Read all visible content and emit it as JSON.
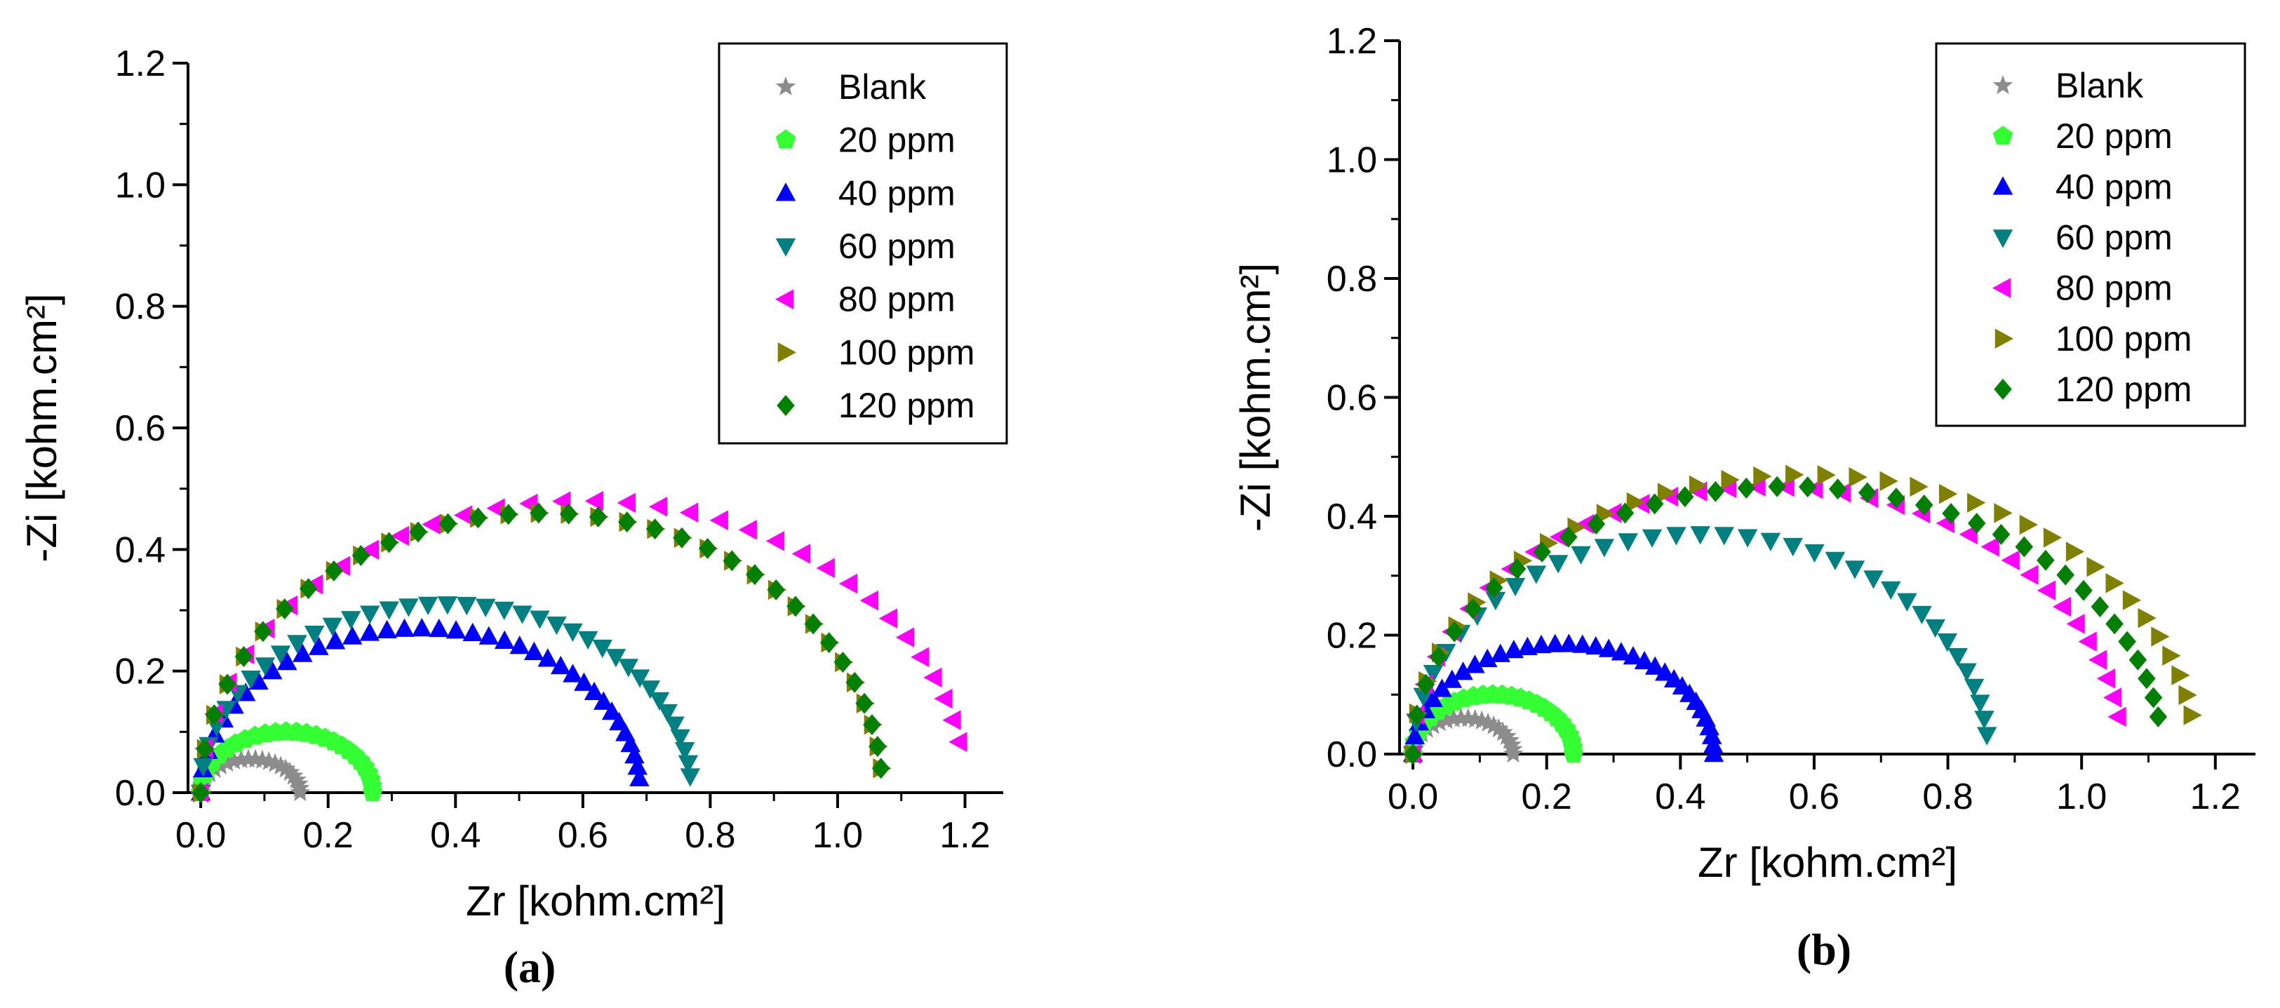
{
  "chart_data": [
    {
      "type": "scatter",
      "caption": "(a)",
      "xlabel": "Zr [kohm.cm²]",
      "ylabel": "-Zi [kohm.cm²]",
      "xlim": [
        -0.02,
        1.26
      ],
      "ylim": [
        0,
        1.2
      ],
      "xticks": [
        "0.0",
        "0.2",
        "0.4",
        "0.6",
        "0.8",
        "1.0",
        "1.2"
      ],
      "yticks": [
        "0.0",
        "0.2",
        "0.4",
        "0.6",
        "0.8",
        "1.0",
        "1.2"
      ],
      "grid": false,
      "legend": "top-right",
      "series": [
        {
          "name": "Blank",
          "marker": "star",
          "color": "#8c8c8c",
          "center": 0.078,
          "radius": 0.078,
          "height": 0.055,
          "points": 22,
          "maxAngle": 180
        },
        {
          "name": "20 ppm",
          "marker": "pentagon",
          "color": "#33ff33",
          "center": 0.135,
          "radius": 0.135,
          "height": 0.1,
          "points": 26,
          "maxAngle": 180
        },
        {
          "name": "40 ppm",
          "marker": "triangle-up",
          "color": "#0000ff",
          "center": 0.345,
          "radius": 0.345,
          "height": 0.27,
          "points": 38,
          "maxAngle": 175
        },
        {
          "name": "60 ppm",
          "marker": "triangle-down",
          "color": "#008080",
          "center": 0.385,
          "radius": 0.385,
          "height": 0.31,
          "points": 38,
          "maxAngle": 175
        },
        {
          "name": "80 ppm",
          "marker": "triangle-left",
          "color": "#ff00ff",
          "center": 0.6,
          "radius": 0.6,
          "height": 0.48,
          "points": 34,
          "maxAngle": 170
        },
        {
          "name": "100 ppm",
          "marker": "triangle-right",
          "color": "#808000",
          "center": 0.535,
          "radius": 0.535,
          "height": 0.46,
          "points": 34,
          "maxAngle": 175
        },
        {
          "name": "120 ppm",
          "marker": "diamond",
          "color": "#008000",
          "center": 0.535,
          "radius": 0.535,
          "height": 0.46,
          "points": 34,
          "maxAngle": 175
        }
      ]
    },
    {
      "type": "scatter",
      "caption": "(b)",
      "xlabel": "Zr [kohm.cm²]",
      "ylabel": "-Zi [kohm.cm²]",
      "xlim": [
        -0.02,
        1.26
      ],
      "ylim": [
        0,
        1.2
      ],
      "xticks": [
        "0.0",
        "0.2",
        "0.4",
        "0.6",
        "0.8",
        "1.0",
        "1.2"
      ],
      "yticks": [
        "0.0",
        "0.2",
        "0.4",
        "0.6",
        "0.8",
        "1.0",
        "1.2"
      ],
      "grid": false,
      "legend": "top-right",
      "series": [
        {
          "name": "Blank",
          "marker": "star",
          "color": "#8c8c8c",
          "center": 0.075,
          "radius": 0.075,
          "height": 0.06,
          "points": 22,
          "maxAngle": 180
        },
        {
          "name": "20 ppm",
          "marker": "pentagon",
          "color": "#33ff33",
          "center": 0.12,
          "radius": 0.12,
          "height": 0.1,
          "points": 26,
          "maxAngle": 180
        },
        {
          "name": "40 ppm",
          "marker": "triangle-up",
          "color": "#0000ff",
          "center": 0.225,
          "radius": 0.225,
          "height": 0.185,
          "points": 34,
          "maxAngle": 180
        },
        {
          "name": "60 ppm",
          "marker": "triangle-down",
          "color": "#008080",
          "center": 0.43,
          "radius": 0.43,
          "height": 0.37,
          "points": 36,
          "maxAngle": 175
        },
        {
          "name": "80 ppm",
          "marker": "triangle-left",
          "color": "#ff00ff",
          "center": 0.53,
          "radius": 0.53,
          "height": 0.45,
          "points": 36,
          "maxAngle": 172
        },
        {
          "name": "100 ppm",
          "marker": "triangle-right",
          "color": "#808000",
          "center": 0.585,
          "radius": 0.585,
          "height": 0.47,
          "points": 36,
          "maxAngle": 172
        },
        {
          "name": "120 ppm",
          "marker": "diamond",
          "color": "#008000",
          "center": 0.56,
          "radius": 0.56,
          "height": 0.45,
          "points": 36,
          "maxAngle": 172
        }
      ]
    }
  ]
}
